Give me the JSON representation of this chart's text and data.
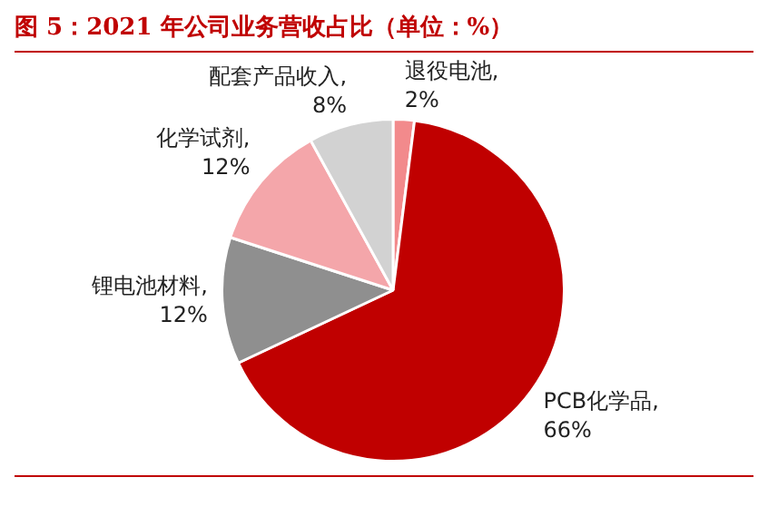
{
  "chart_data": {
    "type": "pie",
    "title": "图 5：2021 年公司业务营收占比（单位：%）",
    "categories": [
      "退役电池",
      "PCB化学品",
      "锂电池材料",
      "化学试剂",
      "配套产品收入"
    ],
    "values": [
      2,
      66,
      12,
      12,
      8
    ],
    "colors": [
      "#f28a8c",
      "#c00000",
      "#8f8f8f",
      "#f4a6aa",
      "#d2d2d2"
    ],
    "value_labels": [
      ", 2%",
      ", 66%",
      ", 12%",
      ", 12%",
      ", 8%"
    ],
    "legend": false
  }
}
